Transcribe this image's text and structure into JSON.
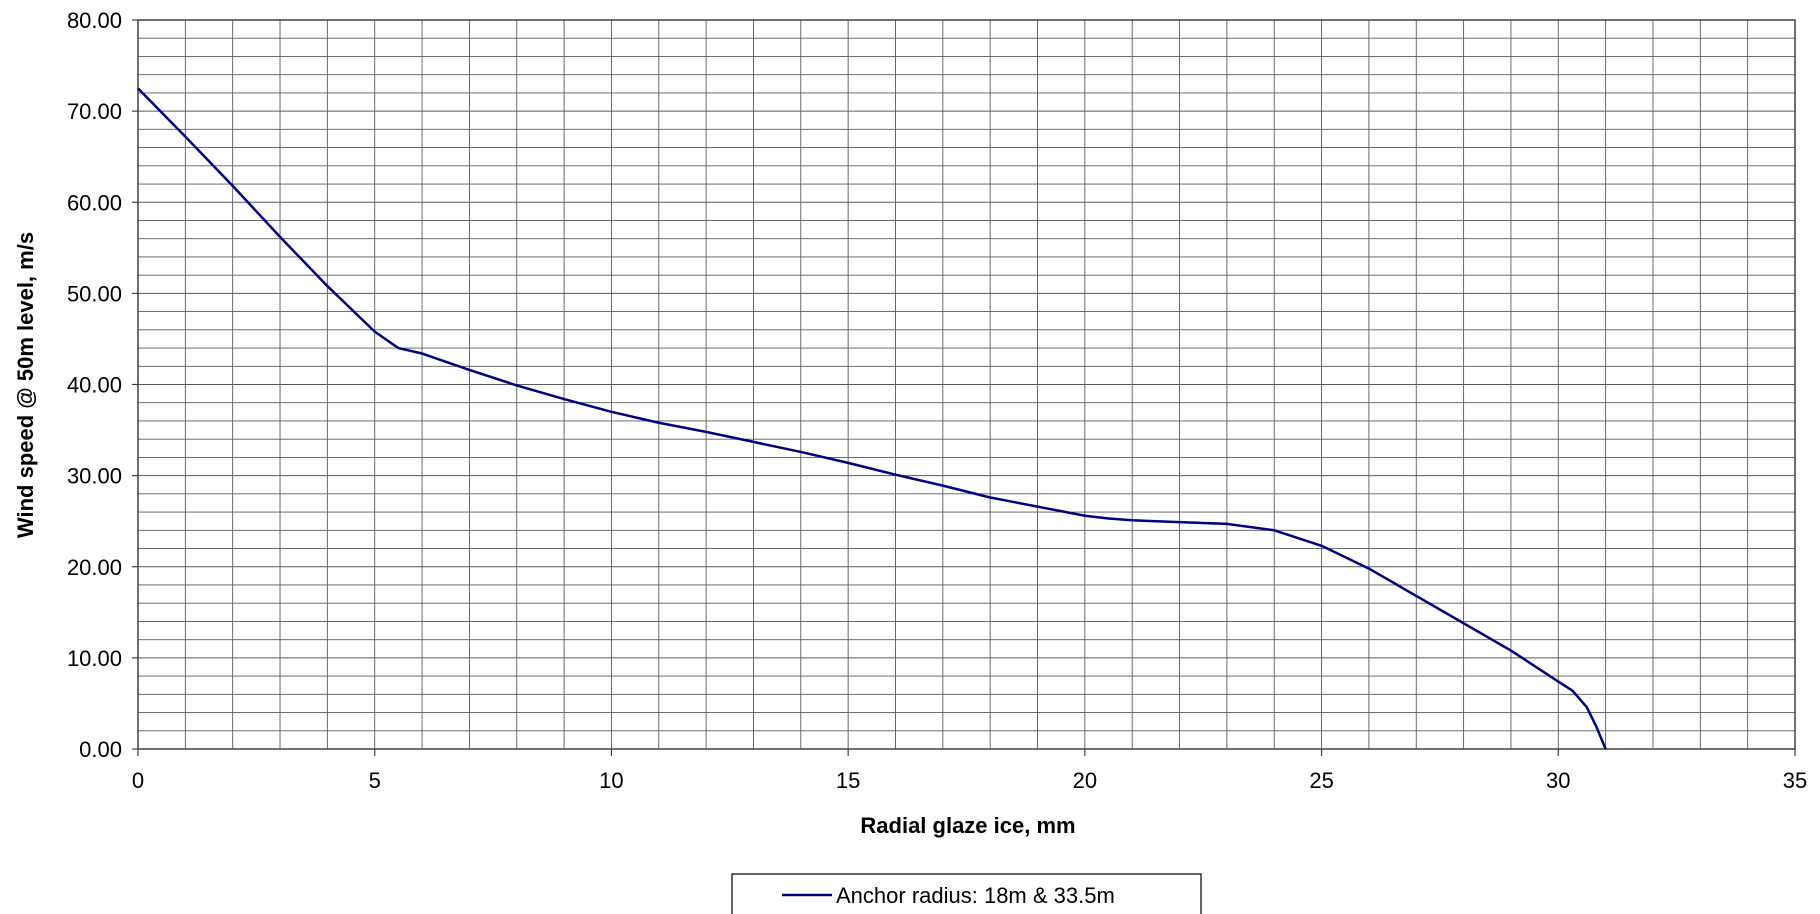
{
  "chart_data": {
    "type": "line",
    "title": "",
    "xlabel": "Radial glaze ice, mm",
    "ylabel": "Wind speed @ 50m level, m/s",
    "xlim": [
      0,
      35
    ],
    "ylim": [
      0,
      80
    ],
    "x_ticks": [
      "0",
      "5",
      "10",
      "15",
      "20",
      "25",
      "30",
      "35"
    ],
    "y_ticks": [
      "0.00",
      "10.00",
      "20.00",
      "30.00",
      "40.00",
      "50.00",
      "60.00",
      "70.00",
      "80.00"
    ],
    "grid": true,
    "legend_position": "bottom",
    "series": [
      {
        "name": "Anchor radius: 18m & 33.5m",
        "color": "#000080",
        "x": [
          0,
          1,
          2,
          3,
          4,
          5,
          5.5,
          6,
          7,
          8,
          9,
          10,
          11,
          12,
          13,
          14,
          15,
          16,
          17,
          18,
          19,
          20,
          20.5,
          21,
          22,
          23,
          24,
          25,
          26,
          27,
          28,
          29,
          30,
          30.3,
          30.6,
          30.8,
          31
        ],
        "y": [
          72.5,
          67.2,
          61.8,
          56.2,
          50.8,
          45.8,
          44.0,
          43.4,
          41.6,
          39.9,
          38.4,
          37.0,
          35.8,
          34.8,
          33.7,
          32.6,
          31.4,
          30.1,
          28.9,
          27.6,
          26.6,
          25.6,
          25.3,
          25.1,
          24.9,
          24.7,
          24.0,
          22.3,
          19.8,
          16.8,
          13.8,
          10.8,
          7.4,
          6.4,
          4.6,
          2.5,
          0.0
        ]
      }
    ]
  }
}
